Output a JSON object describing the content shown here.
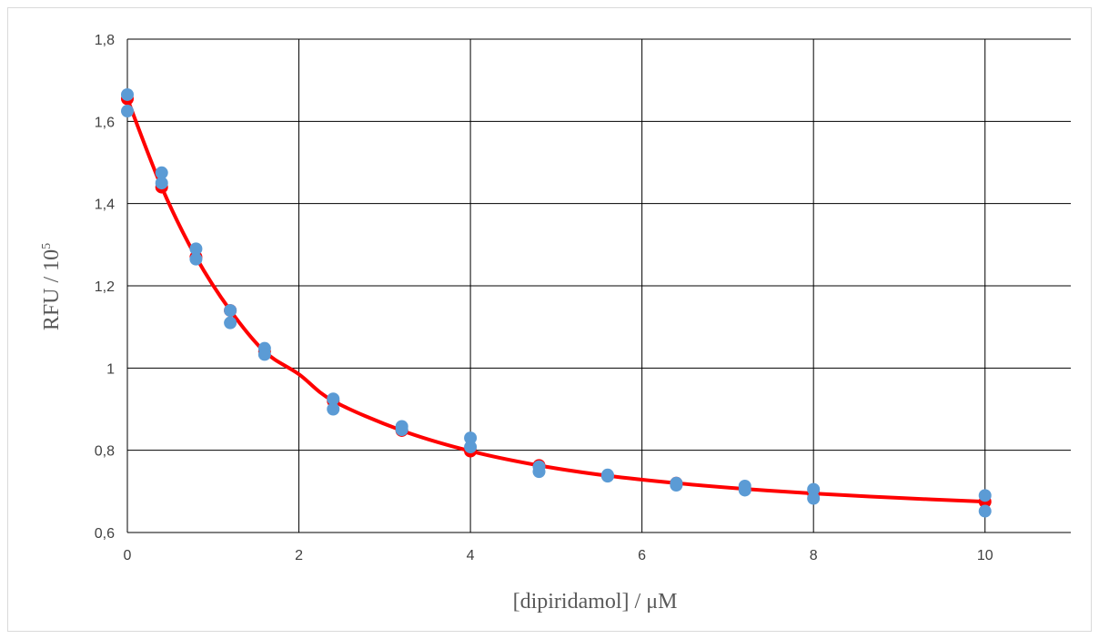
{
  "chart_data": {
    "type": "scatter",
    "title": "",
    "xlabel": "[dipiridamol] / μM",
    "ylabel_main": "RFU / 10",
    "ylabel_sup": "5",
    "xlim": [
      0,
      11
    ],
    "ylim": [
      0.6,
      1.8
    ],
    "x_ticks": [
      0,
      2,
      4,
      6,
      8,
      10
    ],
    "x_tick_labels": [
      "0",
      "2",
      "4",
      "6",
      "8",
      "10"
    ],
    "y_ticks": [
      0.6,
      0.8,
      1.0,
      1.2,
      1.4,
      1.6,
      1.8
    ],
    "y_tick_labels": [
      "0,6",
      "0,8",
      "1",
      "1,2",
      "1,4",
      "1,6",
      "1,8"
    ],
    "grid": true,
    "legend": "none",
    "series": [
      {
        "kind": "line",
        "color": "#ff0000",
        "points": [
          [
            0,
            1.655
          ],
          [
            0.4,
            1.44
          ],
          [
            0.8,
            1.27
          ],
          [
            1.2,
            1.14
          ],
          [
            1.6,
            1.04
          ],
          [
            2.0,
            0.985
          ],
          [
            2.4,
            0.92
          ],
          [
            3.2,
            0.848
          ],
          [
            4.0,
            0.798
          ],
          [
            4.8,
            0.763
          ],
          [
            5.6,
            0.738
          ],
          [
            6.4,
            0.72
          ],
          [
            7.2,
            0.706
          ],
          [
            8.0,
            0.695
          ],
          [
            9.0,
            0.684
          ],
          [
            10.0,
            0.675
          ]
        ]
      },
      {
        "kind": "markers",
        "color": "#ff0000",
        "points": [
          [
            0,
            1.655
          ],
          [
            0.4,
            1.44
          ],
          [
            0.8,
            1.27
          ],
          [
            1.2,
            1.14
          ],
          [
            1.6,
            1.04
          ],
          [
            2.4,
            0.92
          ],
          [
            3.2,
            0.848
          ],
          [
            4.0,
            0.798
          ],
          [
            4.8,
            0.763
          ],
          [
            5.6,
            0.738
          ],
          [
            6.4,
            0.72
          ],
          [
            7.2,
            0.706
          ],
          [
            8.0,
            0.695
          ],
          [
            10.0,
            0.675
          ]
        ]
      },
      {
        "kind": "markers",
        "color": "#5b9bd5",
        "points": [
          [
            0,
            1.665
          ],
          [
            0,
            1.625
          ],
          [
            0.4,
            1.475
          ],
          [
            0.4,
            1.45
          ],
          [
            0.8,
            1.29
          ],
          [
            0.8,
            1.265
          ],
          [
            1.2,
            1.14
          ],
          [
            1.2,
            1.11
          ],
          [
            1.6,
            1.048
          ],
          [
            1.6,
            1.033
          ],
          [
            2.4,
            0.925
          ],
          [
            2.4,
            0.9
          ],
          [
            3.2,
            0.858
          ],
          [
            3.2,
            0.85
          ],
          [
            4.0,
            0.83
          ],
          [
            4.0,
            0.808
          ],
          [
            4.8,
            0.76
          ],
          [
            4.8,
            0.748
          ],
          [
            5.6,
            0.74
          ],
          [
            5.6,
            0.737
          ],
          [
            6.4,
            0.72
          ],
          [
            6.4,
            0.715
          ],
          [
            7.2,
            0.713
          ],
          [
            7.2,
            0.703
          ],
          [
            8.0,
            0.705
          ],
          [
            8.0,
            0.683
          ],
          [
            10.0,
            0.69
          ],
          [
            10.0,
            0.652
          ]
        ]
      }
    ]
  }
}
